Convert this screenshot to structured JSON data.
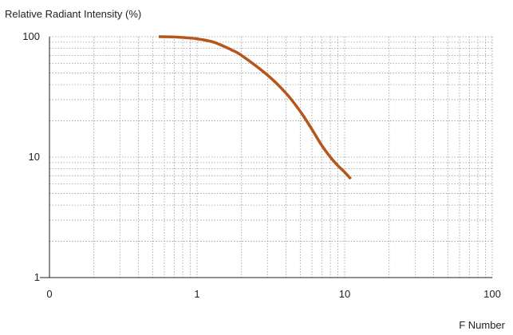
{
  "chart_data": {
    "type": "line",
    "ylabel": "Relative Radiant Intensity (%)",
    "xlabel": "F Number",
    "x_scale": "log",
    "y_scale": "log",
    "xlim": [
      0.1,
      100
    ],
    "ylim": [
      1,
      100
    ],
    "x_ticks": [
      {
        "value": 0.1,
        "label": "0"
      },
      {
        "value": 1,
        "label": "1"
      },
      {
        "value": 10,
        "label": "10"
      },
      {
        "value": 100,
        "label": "100"
      }
    ],
    "y_ticks": [
      {
        "value": 1,
        "label": "1"
      },
      {
        "value": 10,
        "label": "10"
      },
      {
        "value": 100,
        "label": "100"
      }
    ],
    "grid": true,
    "line_color": "#b5561b",
    "grid_color": "#9a9a9a",
    "series": [
      {
        "values_xy": [
          [
            0.55,
            100
          ],
          [
            0.7,
            99.5
          ],
          [
            0.85,
            98
          ],
          [
            1.0,
            96
          ],
          [
            1.3,
            90
          ],
          [
            1.7,
            78
          ],
          [
            2.0,
            70
          ],
          [
            3.0,
            48
          ],
          [
            4.0,
            34
          ],
          [
            5.0,
            24
          ],
          [
            6.0,
            17
          ],
          [
            7.0,
            12.5
          ],
          [
            8.0,
            10
          ],
          [
            9.0,
            8.5
          ],
          [
            10.0,
            7.5
          ],
          [
            11.0,
            6.6
          ]
        ]
      }
    ]
  }
}
